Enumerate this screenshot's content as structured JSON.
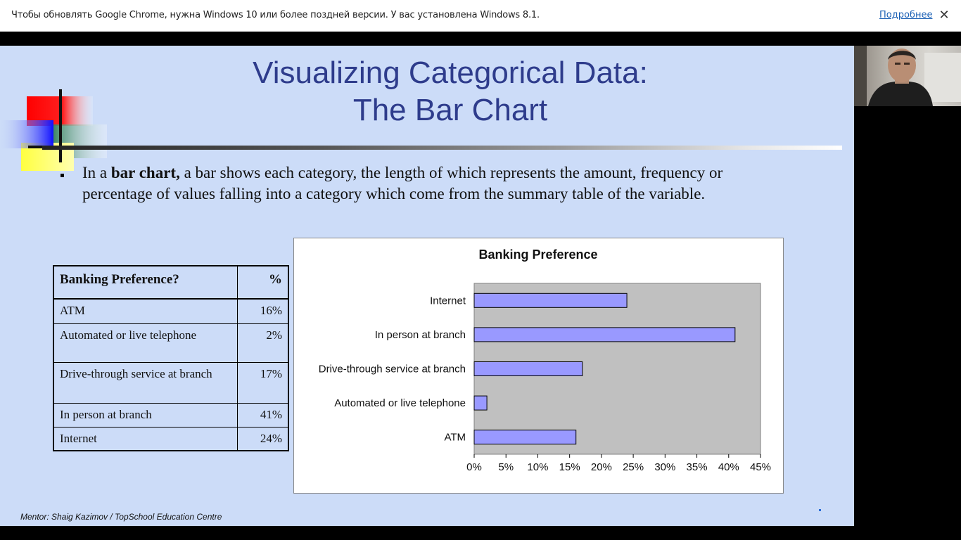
{
  "infobar": {
    "message": "Чтобы обновлять Google Chrome, нужна Windows 10 или более поздней версии. У вас установлена Windows 8.1.",
    "link": "Подробнее",
    "close": "✕"
  },
  "slide": {
    "title_line1": "Visualizing Categorical Data:",
    "title_line2": "The Bar Chart",
    "bullet_prefix": "In a ",
    "bullet_bold": "bar chart,",
    "bullet_rest": " a bar shows each category, the length of which represents the amount, frequency or percentage of values falling into a category which come from the summary table of the variable.",
    "footer": "Mentor: Shaig Kazimov / TopSchool Education Centre"
  },
  "table": {
    "headers": [
      "Banking Preference?",
      "%"
    ],
    "rows": [
      [
        "ATM",
        "16%"
      ],
      [
        "Automated or live telephone",
        "2%"
      ],
      [
        "Drive-through service at branch",
        "17%"
      ],
      [
        "In person at branch",
        "41%"
      ],
      [
        "Internet",
        "24%"
      ]
    ]
  },
  "chart_data": {
    "type": "bar",
    "orientation": "horizontal",
    "title": "Banking Preference",
    "categories": [
      "Internet",
      "In person at branch",
      "Drive-through service at branch",
      "Automated or live telephone",
      "ATM"
    ],
    "values": [
      24,
      41,
      17,
      2,
      16
    ],
    "xlim": [
      0,
      45
    ],
    "xticks": [
      "0%",
      "5%",
      "10%",
      "15%",
      "20%",
      "25%",
      "30%",
      "35%",
      "40%",
      "45%"
    ],
    "bar_color": "#9999ff",
    "plot_background": "#c0c0c0",
    "grid": false
  },
  "colors": {
    "slide_bg": "#ccdcf8",
    "title": "#2e3c8c"
  }
}
